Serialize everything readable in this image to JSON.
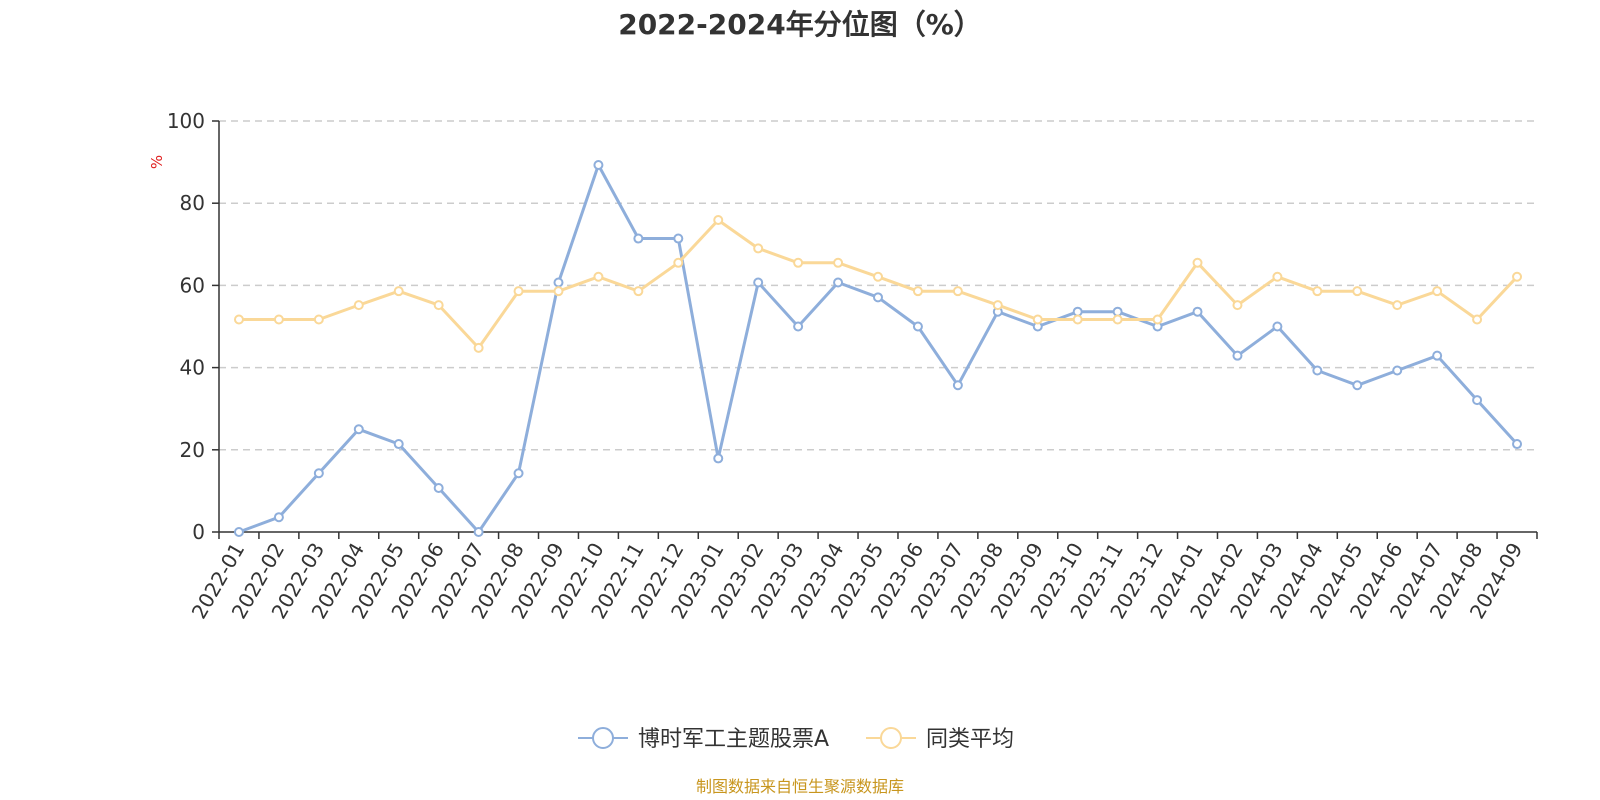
{
  "chart_data": {
    "type": "line",
    "title": "2022-2024年分位图（%）",
    "ylabel": "%",
    "ylim": [
      0,
      100
    ],
    "yticks": [
      "0",
      "20",
      "40",
      "60",
      "80",
      "100"
    ],
    "grid": true,
    "legend_position": "bottom",
    "categories": [
      "2022-01",
      "2022-02",
      "2022-03",
      "2022-04",
      "2022-05",
      "2022-06",
      "2022-07",
      "2022-08",
      "2022-09",
      "2022-10",
      "2022-11",
      "2022-12",
      "2023-01",
      "2023-02",
      "2023-03",
      "2023-04",
      "2023-05",
      "2023-06",
      "2023-07",
      "2023-08",
      "2023-09",
      "2023-10",
      "2023-11",
      "2023-12",
      "2024-01",
      "2024-02",
      "2024-03",
      "2024-04",
      "2024-05",
      "2024-06",
      "2024-07",
      "2024-08",
      "2024-09"
    ],
    "series": [
      {
        "name": "博时军工主题股票A",
        "color": "#8eaedb",
        "values": [
          0,
          3.6,
          14.3,
          25,
          21.4,
          10.7,
          0,
          14.3,
          60.7,
          89.3,
          71.4,
          71.4,
          17.9,
          60.7,
          50,
          60.7,
          57.1,
          50,
          35.7,
          53.6,
          50,
          53.6,
          53.6,
          50,
          53.6,
          42.9,
          50,
          39.3,
          35.7,
          39.3,
          42.9,
          32.1,
          21.4
        ]
      },
      {
        "name": "同类平均",
        "color": "#fad898",
        "values": [
          51.7,
          51.7,
          51.7,
          55.2,
          58.6,
          55.2,
          44.8,
          58.6,
          58.6,
          62.1,
          58.6,
          65.5,
          75.9,
          69,
          65.5,
          65.5,
          62.1,
          58.6,
          58.6,
          55.2,
          51.7,
          51.7,
          51.7,
          51.7,
          65.5,
          55.2,
          62.1,
          58.6,
          58.6,
          55.2,
          58.6,
          51.7,
          62.1
        ]
      }
    ]
  },
  "source_text": "制图数据来自恒生聚源数据库"
}
